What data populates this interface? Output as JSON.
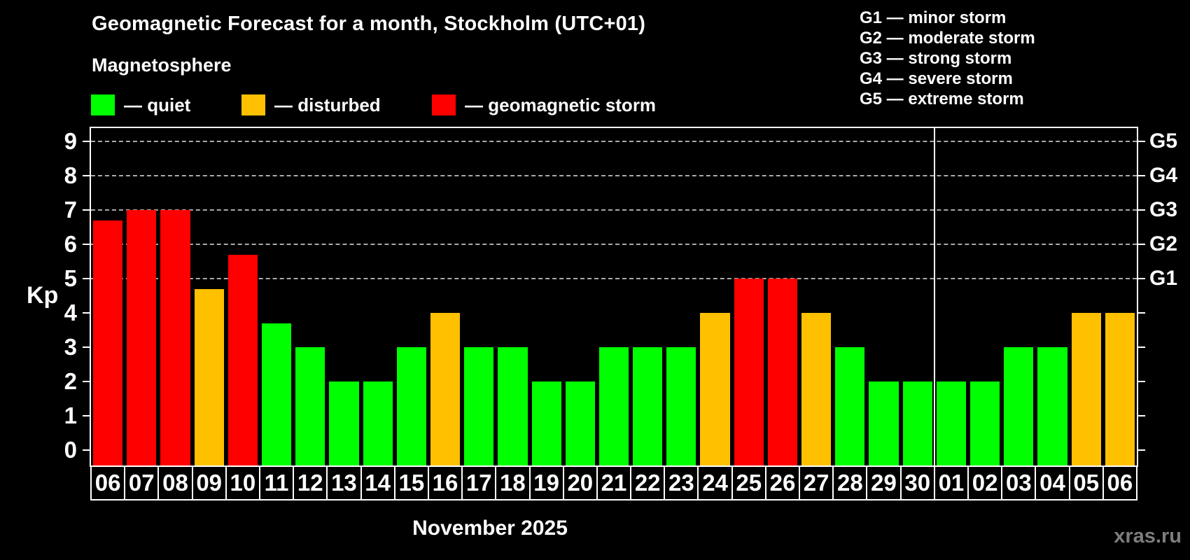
{
  "title": "Geomagnetic Forecast for a month, Stockholm (UTC+01)",
  "subtitle": "Magnetosphere",
  "legend": {
    "items": [
      {
        "label": "— quiet",
        "status": "quiet",
        "color": "#00ff00"
      },
      {
        "label": "— disturbed",
        "status": "disturbed",
        "color": "#ffc000"
      },
      {
        "label": "— geomagnetic storm",
        "status": "storm",
        "color": "#ff0000"
      }
    ]
  },
  "storm_scale_legend": {
    "items": [
      "G1 — minor storm",
      "G2 — moderate storm",
      "G3 — strong storm",
      "G4 — severe storm",
      "G5 — extreme storm"
    ]
  },
  "y_axis": {
    "label": "Kp",
    "ticks": [
      "0",
      "1",
      "2",
      "3",
      "4",
      "5",
      "6",
      "7",
      "8",
      "9"
    ]
  },
  "right_axis": {
    "labels": [
      {
        "text": "G1",
        "kp": 5
      },
      {
        "text": "G2",
        "kp": 6
      },
      {
        "text": "G3",
        "kp": 7
      },
      {
        "text": "G4",
        "kp": 8
      },
      {
        "text": "G5",
        "kp": 9
      }
    ]
  },
  "x_axis": {
    "month_label": "November 2025"
  },
  "watermark": "xras.ru",
  "colors": {
    "quiet": "#00ff00",
    "disturbed": "#ffc000",
    "storm": "#ff0000",
    "grid": "#aaaaaa",
    "frame": "#ffffff",
    "background": "#000000",
    "watermark": "#7d7d7d"
  },
  "chart_data": {
    "type": "bar",
    "title": "Geomagnetic Forecast for a month, Stockholm (UTC+01)",
    "subtitle": "Magnetosphere",
    "xlabel": "November 2025",
    "ylabel": "Kp",
    "ylim": [
      0,
      9
    ],
    "grid": "dashed horizontal lines at Kp 5,6,7,8,9 (G1–G5)",
    "legend_position": "top-left",
    "gridlines_at": [
      5,
      6,
      7,
      8,
      9
    ],
    "categories": [
      "06",
      "07",
      "08",
      "09",
      "10",
      "11",
      "12",
      "13",
      "14",
      "15",
      "16",
      "17",
      "18",
      "19",
      "20",
      "21",
      "22",
      "23",
      "24",
      "25",
      "26",
      "27",
      "28",
      "29",
      "30",
      "01",
      "02",
      "03",
      "04",
      "05",
      "06"
    ],
    "values": [
      6.7,
      7,
      7,
      4.7,
      5.7,
      3.7,
      3,
      2,
      2,
      3,
      4,
      3,
      3,
      2,
      2,
      3,
      3,
      3,
      4,
      5,
      5,
      4,
      3,
      2,
      2,
      2,
      2,
      3,
      3,
      4,
      4
    ],
    "statuses": [
      "storm",
      "storm",
      "storm",
      "disturbed",
      "storm",
      "quiet",
      "quiet",
      "quiet",
      "quiet",
      "quiet",
      "disturbed",
      "quiet",
      "quiet",
      "quiet",
      "quiet",
      "quiet",
      "quiet",
      "quiet",
      "disturbed",
      "storm",
      "storm",
      "disturbed",
      "quiet",
      "quiet",
      "quiet",
      "quiet",
      "quiet",
      "quiet",
      "quiet",
      "disturbed",
      "disturbed"
    ],
    "separator_after_index": 24
  }
}
